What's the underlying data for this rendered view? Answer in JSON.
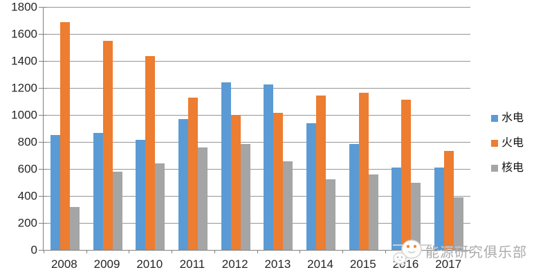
{
  "chart_data": {
    "type": "bar",
    "title": "",
    "categories": [
      "2008",
      "2009",
      "2010",
      "2011",
      "2012",
      "2013",
      "2014",
      "2015",
      "2016",
      "2017"
    ],
    "series": [
      {
        "key": "hydro",
        "name": "水电",
        "color": "#5B9BD5",
        "values": [
          850,
          865,
          815,
          970,
          1240,
          1225,
          940,
          785,
          610,
          610
        ]
      },
      {
        "key": "thermal",
        "name": "火电",
        "color": "#ED7D31",
        "values": [
          1685,
          1550,
          1435,
          1130,
          1000,
          1015,
          1145,
          1165,
          1115,
          735
        ]
      },
      {
        "key": "nuclear",
        "name": "核电",
        "color": "#A5A5A5",
        "values": [
          320,
          580,
          640,
          760,
          785,
          655,
          525,
          560,
          500,
          390
        ]
      }
    ],
    "xlabel": "",
    "ylabel": "",
    "ylim": [
      0,
      1800
    ],
    "y_ticks": [
      0,
      200,
      400,
      600,
      800,
      1000,
      1200,
      1400,
      1600,
      1800
    ],
    "grid": true,
    "legend_position": "right"
  },
  "watermark": {
    "text": "能源研究俱乐部"
  },
  "colors": {
    "gridline": "#969696",
    "axis": "#808080",
    "axis_label": "#262626",
    "watermark_text": "#ABABAB"
  }
}
